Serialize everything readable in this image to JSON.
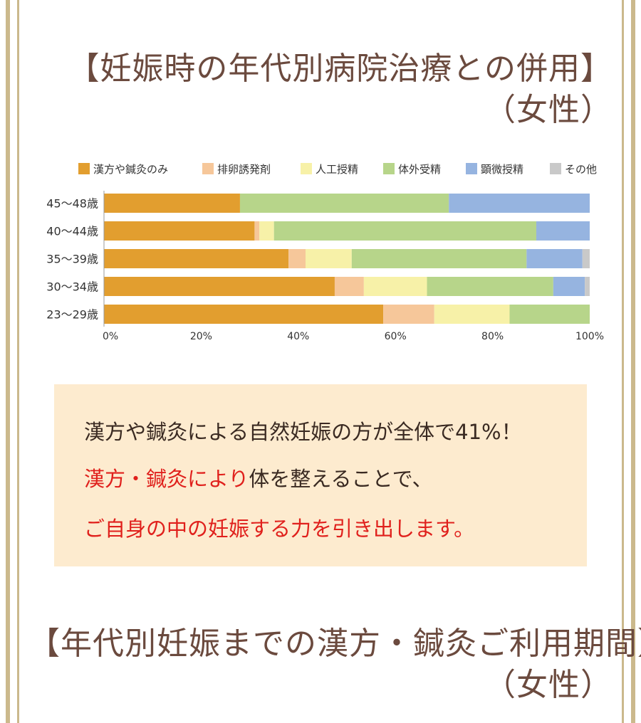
{
  "heading1": {
    "line1": "【妊娠時の年代別病院治療との併用】",
    "line2": "（女性）"
  },
  "heading2": {
    "line1": "【年代別妊娠までの漢方・鍼灸ご利用期間】",
    "line2": "（女性）"
  },
  "message": {
    "line1": "漢方や鍼灸による自然妊娠の方が全体で41%！",
    "line2_red": "漢方・鍼灸により",
    "line2_rest": "体を整えることで、",
    "line3": "ご自身の中の妊娠する力を引き出します。"
  },
  "colors": {
    "frame": "#cbb98c",
    "heading": "#6b4a3e",
    "box": "#fdebcf",
    "emphasis": "#e0201c"
  },
  "chart_data": {
    "type": "bar",
    "orientation": "horizontal",
    "stacked": true,
    "normalized": true,
    "categories": [
      "45〜48歳",
      "40〜44歳",
      "35〜39歳",
      "30〜34歳",
      "23〜29歳"
    ],
    "series": [
      {
        "name": "漢方や鍼灸のみ",
        "color": "#e29e2f",
        "values": [
          28,
          31,
          38,
          47.5,
          57.5
        ]
      },
      {
        "name": "排卵誘発剤",
        "color": "#f6c79a",
        "values": [
          0,
          1,
          3.5,
          6,
          10.5
        ]
      },
      {
        "name": "人工授精",
        "color": "#f7f1a8",
        "values": [
          0,
          3,
          9.5,
          13,
          15.5
        ]
      },
      {
        "name": "体外受精",
        "color": "#b7d58a",
        "values": [
          43,
          54,
          36,
          26,
          16.5
        ]
      },
      {
        "name": "顕微授精",
        "color": "#96b4e0",
        "values": [
          29,
          11,
          11.5,
          6.5,
          0
        ]
      },
      {
        "name": "その他",
        "color": "#c9c9c9",
        "values": [
          0,
          0,
          1.5,
          1,
          0
        ]
      }
    ],
    "x_ticks": [
      "0%",
      "20%",
      "40%",
      "60%",
      "80%",
      "100%"
    ],
    "xlim": [
      0,
      100
    ],
    "legend": "top"
  }
}
